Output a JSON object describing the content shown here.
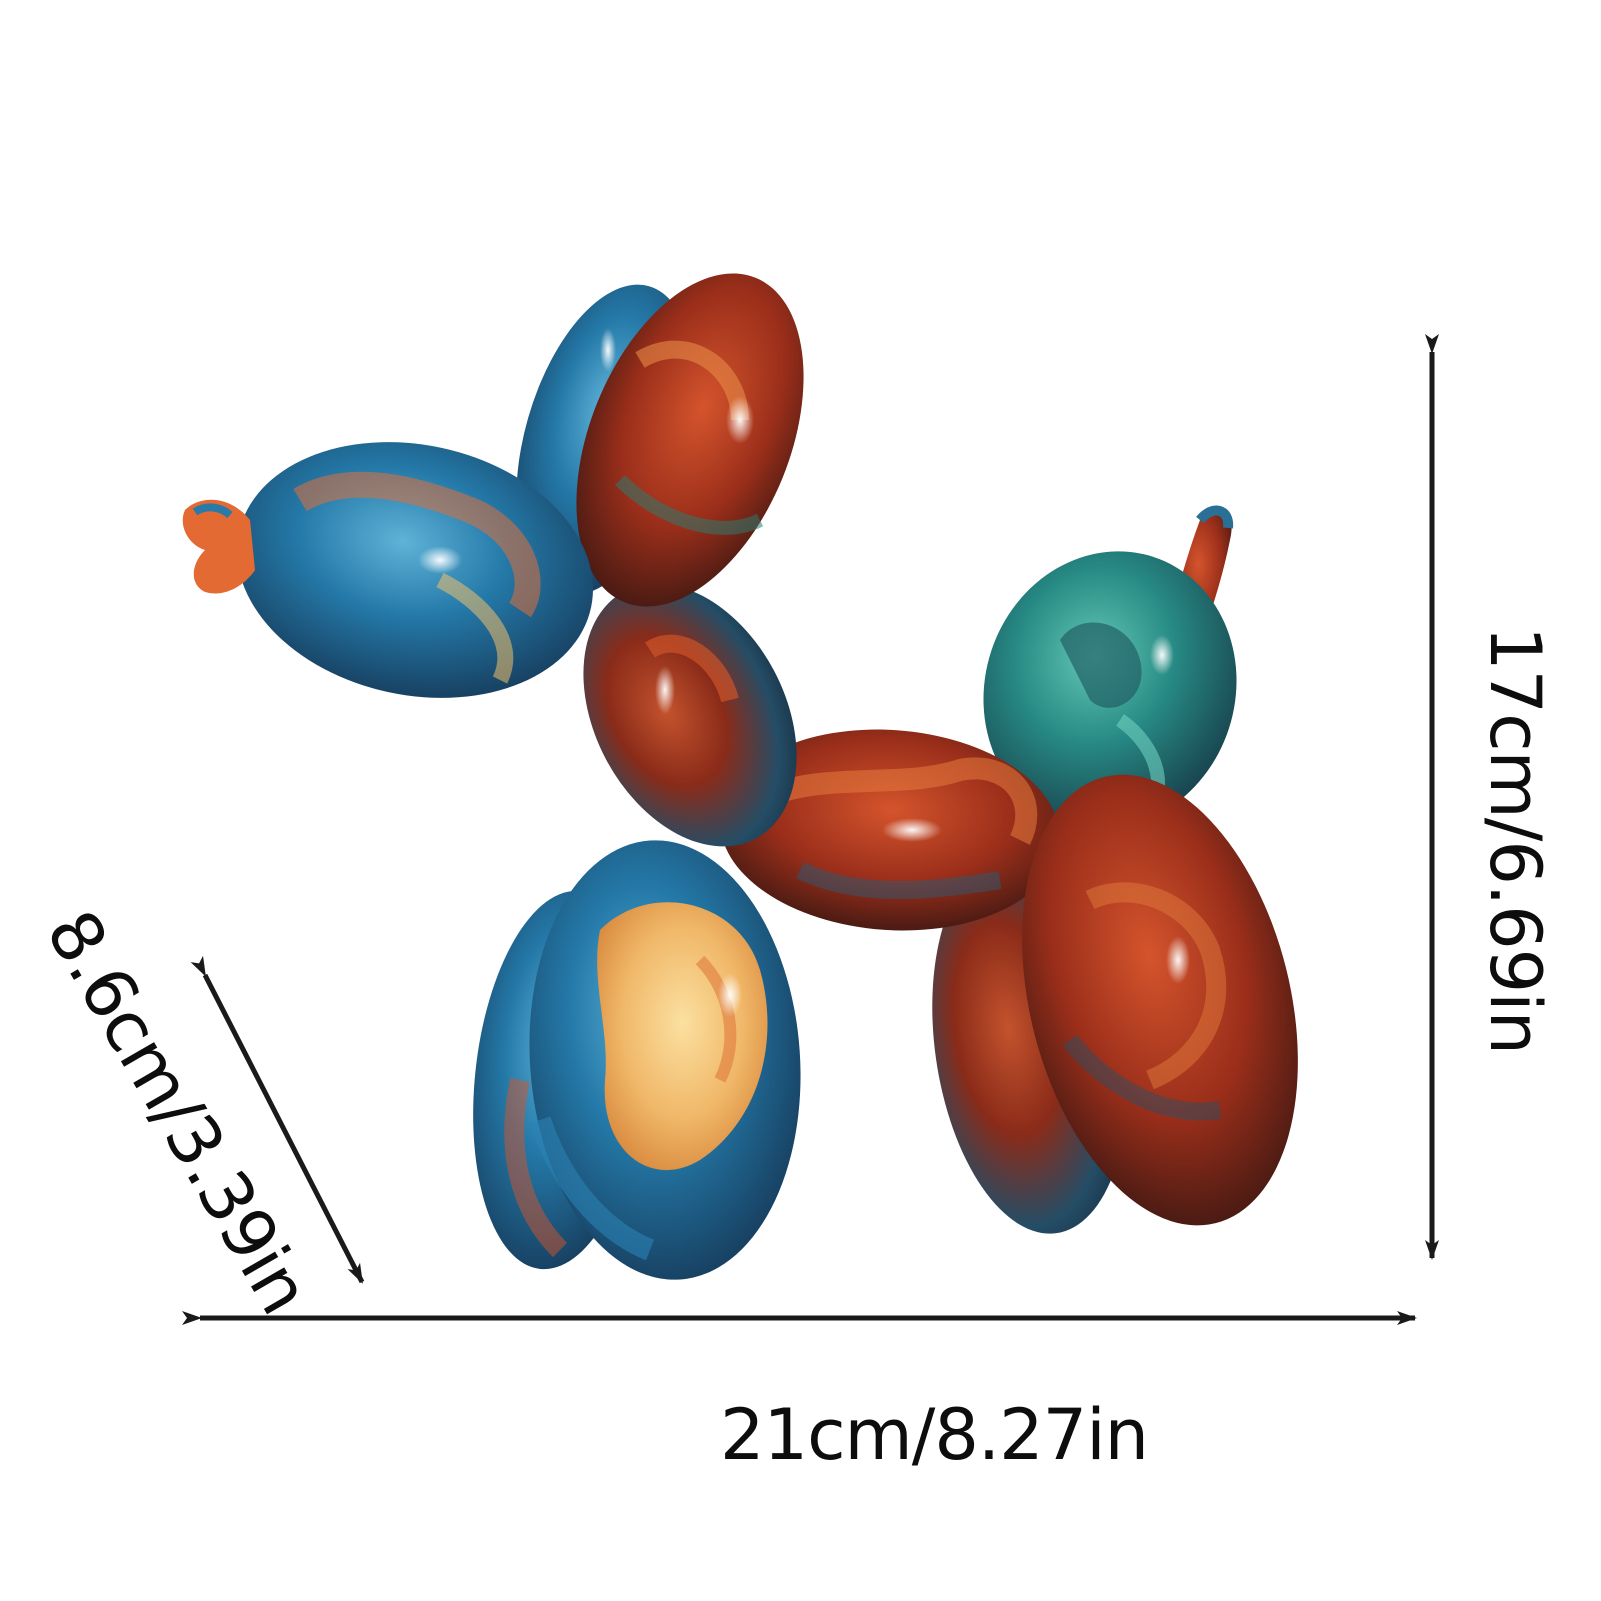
{
  "image": {
    "subject": "balloon dog figurine",
    "background_color": "#ffffff"
  },
  "dimensions": {
    "width_label": "21cm/8.27in",
    "height_label": "17cm/6.69in",
    "depth_label": "8.6cm/3.39in"
  },
  "colors": {
    "arrow": "#1a1a1a",
    "text": "#0d0d0d",
    "blue": "#1f6f9a",
    "red": "#a8321c",
    "orange": "#e0733a",
    "yellow": "#f2c36b",
    "teal": "#2c9c8e",
    "dark": "#1d2a38"
  }
}
